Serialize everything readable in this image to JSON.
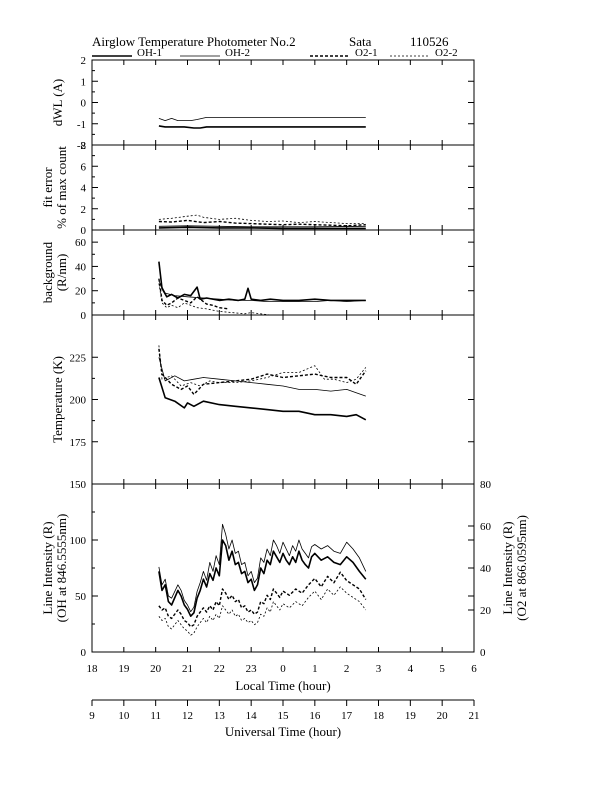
{
  "header": {
    "title": "Airglow Temperature Photometer No.2",
    "site": "Sata",
    "date": "110526"
  },
  "legend": [
    {
      "name": "OH-1",
      "style": "solid-thick"
    },
    {
      "name": "OH-2",
      "style": "solid-thin"
    },
    {
      "name": "O2-1",
      "style": "dash-thick"
    },
    {
      "name": "O2-2",
      "style": "dash-thin"
    }
  ],
  "chart_data": [
    {
      "type": "line",
      "ylabel": "dWL (A)",
      "ylim": [
        -2,
        2
      ],
      "yticks": [
        -2,
        -1,
        0,
        1,
        2
      ],
      "series": [
        {
          "name": "OH-1",
          "x": [
            20.1,
            20.3,
            20.6,
            20.9,
            21.2,
            21.4,
            21.6,
            23.0,
            25.0,
            26.6
          ],
          "y": [
            -1.1,
            -1.15,
            -1.15,
            -1.15,
            -1.2,
            -1.2,
            -1.15,
            -1.15,
            -1.15,
            -1.15
          ]
        },
        {
          "name": "OH-2",
          "x": [
            20.1,
            20.3,
            20.5,
            20.7,
            20.9,
            21.1,
            21.3,
            21.6,
            23.0,
            25.0,
            26.6
          ],
          "y": [
            -0.75,
            -0.85,
            -0.75,
            -0.85,
            -0.85,
            -0.85,
            -0.8,
            -0.7,
            -0.7,
            -0.7,
            -0.7
          ]
        }
      ]
    },
    {
      "type": "line",
      "ylabel": "fit error",
      "ylabel2": "% of max count",
      "ylim": [
        0,
        8
      ],
      "yticks": [
        0,
        2,
        4,
        6,
        8
      ],
      "series": [
        {
          "name": "OH-1",
          "x": [
            20.1,
            21.0,
            22.0,
            23.0,
            24.0,
            25.0,
            26.6
          ],
          "y": [
            0.2,
            0.25,
            0.2,
            0.2,
            0.15,
            0.15,
            0.15
          ]
        },
        {
          "name": "OH-2",
          "x": [
            20.1,
            21.0,
            22.0,
            23.0,
            24.0,
            25.0,
            26.6
          ],
          "y": [
            0.35,
            0.4,
            0.35,
            0.3,
            0.3,
            0.3,
            0.35
          ]
        },
        {
          "name": "O2-1",
          "x": [
            20.1,
            20.5,
            21.0,
            21.5,
            22.0,
            22.5,
            23.0,
            23.5,
            24.0,
            24.5,
            25.0,
            25.5,
            26.0,
            26.6
          ],
          "y": [
            0.8,
            0.75,
            0.9,
            0.7,
            0.8,
            0.65,
            0.6,
            0.55,
            0.5,
            0.55,
            0.5,
            0.45,
            0.4,
            0.5
          ]
        },
        {
          "name": "O2-2",
          "x": [
            20.1,
            20.5,
            21.0,
            21.3,
            21.5,
            22.0,
            22.5,
            23.0,
            23.5,
            24.0,
            24.5,
            25.0,
            25.5,
            26.0,
            26.6
          ],
          "y": [
            1.0,
            1.1,
            1.3,
            1.4,
            1.2,
            1.0,
            1.1,
            0.9,
            0.8,
            0.85,
            0.7,
            0.8,
            0.7,
            0.6,
            0.6
          ]
        }
      ]
    },
    {
      "type": "line",
      "ylabel": "background",
      "ylabel2": "(R/nm)",
      "ylim": [
        0,
        70
      ],
      "yticks": [
        0,
        20,
        40,
        60
      ],
      "series": [
        {
          "name": "OH-1",
          "x": [
            20.1,
            20.2,
            20.35,
            20.5,
            20.7,
            20.9,
            21.1,
            21.3,
            21.4,
            21.6,
            22.0,
            22.3,
            22.6,
            22.8,
            22.9,
            23.0,
            23.3,
            23.6,
            24.0,
            24.5,
            25.0,
            25.5,
            26.0,
            26.6
          ],
          "y": [
            44,
            22,
            15,
            17,
            14,
            17,
            16,
            23,
            13,
            14,
            12,
            13,
            12,
            13,
            22,
            13,
            12,
            13,
            12,
            12,
            13,
            12,
            12,
            12
          ]
        },
        {
          "name": "OH-2",
          "x": [
            20.1,
            20.3,
            20.6,
            21.0,
            21.5,
            22.0,
            22.5,
            23.0,
            23.5,
            24.0,
            24.5,
            25.0,
            25.5,
            26.0,
            26.6
          ],
          "y": [
            28,
            18,
            16,
            15,
            14,
            13,
            12,
            12,
            11,
            11,
            11,
            11,
            12,
            11,
            12
          ]
        },
        {
          "name": "O2-1",
          "x": [
            20.1,
            20.2,
            20.35,
            20.5,
            20.7,
            20.9,
            21.1,
            21.3,
            21.6,
            21.8,
            22.0,
            22.3
          ],
          "y": [
            30,
            12,
            8,
            10,
            14,
            12,
            10,
            15,
            9,
            8,
            6,
            5
          ]
        },
        {
          "name": "O2-2",
          "x": [
            20.1,
            20.2,
            20.35,
            20.5,
            20.7,
            20.9,
            21.1,
            21.3,
            21.6,
            22.0,
            22.4,
            22.8,
            23.0,
            23.3,
            23.6
          ],
          "y": [
            26,
            10,
            6,
            8,
            6,
            10,
            8,
            6,
            5,
            3,
            2,
            1,
            2,
            1,
            0
          ]
        }
      ]
    },
    {
      "type": "line",
      "ylabel": "Temperature (K)",
      "ylim": [
        150,
        250
      ],
      "yticks": [
        175,
        200,
        225
      ],
      "series": [
        {
          "name": "OH-1",
          "x": [
            20.1,
            20.3,
            20.6,
            20.9,
            21.0,
            21.2,
            21.5,
            22.0,
            22.5,
            23.0,
            23.5,
            24.0,
            24.5,
            25.0,
            25.5,
            26.0,
            26.3,
            26.6
          ],
          "y": [
            213,
            201,
            199,
            195,
            198,
            196,
            199,
            197,
            196,
            195,
            194,
            193,
            193,
            191,
            191,
            190,
            191,
            188
          ]
        },
        {
          "name": "OH-2",
          "x": [
            20.1,
            20.3,
            20.6,
            20.9,
            21.2,
            21.5,
            22.0,
            22.5,
            23.0,
            23.5,
            24.0,
            24.5,
            25.0,
            25.5,
            26.0,
            26.3,
            26.6
          ],
          "y": [
            225,
            211,
            214,
            211,
            212,
            213,
            212,
            211,
            210,
            209,
            208,
            206,
            206,
            205,
            206,
            204,
            202
          ]
        },
        {
          "name": "O2-1",
          "x": [
            20.1,
            20.2,
            20.5,
            20.8,
            21.0,
            21.2,
            21.5,
            22.0,
            22.5,
            23.0,
            23.5,
            24.0,
            24.5,
            25.0,
            25.5,
            26.0,
            26.3,
            26.6
          ],
          "y": [
            230,
            215,
            209,
            206,
            208,
            203,
            209,
            210,
            211,
            212,
            215,
            213,
            214,
            215,
            213,
            213,
            209,
            217
          ]
        },
        {
          "name": "O2-2",
          "x": [
            20.1,
            20.2,
            20.5,
            20.8,
            21.1,
            21.4,
            21.7,
            22.0,
            22.5,
            23.0,
            23.5,
            24.0,
            24.5,
            25.0,
            25.3,
            25.6,
            26.0,
            26.3,
            26.6
          ],
          "y": [
            232,
            212,
            214,
            208,
            210,
            208,
            211,
            210,
            210,
            211,
            213,
            216,
            216,
            220,
            212,
            212,
            210,
            212,
            219
          ]
        }
      ]
    },
    {
      "type": "line",
      "ylabel": "Line Intensity (R)",
      "ylabel2": "(OH at 846.5555nm)",
      "ylim": [
        0,
        150
      ],
      "yticks": [
        0,
        50,
        100,
        150
      ],
      "y2label": "Line Intensity (R)",
      "y2label2": "(O2 at 866.0595nm)",
      "y2lim": [
        0,
        80
      ],
      "y2ticks": [
        0,
        20,
        40,
        60,
        80
      ],
      "xlabel": "Local Time (hour)",
      "xlim": [
        18,
        30
      ],
      "xticks": [
        "18",
        "19",
        "20",
        "21",
        "22",
        "23",
        "0",
        "1",
        "2",
        "3",
        "4",
        "5",
        "6"
      ],
      "xlabel2": "Universal Time (hour)",
      "xticks2": [
        "9",
        "10",
        "11",
        "12",
        "13",
        "14",
        "15",
        "16",
        "17",
        "18",
        "19",
        "20",
        "21"
      ],
      "series": [
        {
          "name": "OH-1",
          "axis": "left",
          "x": [
            20.1,
            20.2,
            20.3,
            20.4,
            20.5,
            20.7,
            20.8,
            20.9,
            21.0,
            21.1,
            21.2,
            21.3,
            21.4,
            21.5,
            21.6,
            21.7,
            21.8,
            21.9,
            22.0,
            22.1,
            22.2,
            22.3,
            22.4,
            22.5,
            22.6,
            22.7,
            22.8,
            22.9,
            23.0,
            23.1,
            23.2,
            23.3,
            23.4,
            23.5,
            23.6,
            23.7,
            23.8,
            23.9,
            24.0,
            24.1,
            24.2,
            24.3,
            24.4,
            24.5,
            24.6,
            24.7,
            24.8,
            24.9,
            25.0,
            25.2,
            25.4,
            25.6,
            25.8,
            26.0,
            26.2,
            26.4,
            26.6
          ],
          "y": [
            72,
            55,
            60,
            45,
            42,
            55,
            50,
            42,
            38,
            32,
            35,
            48,
            55,
            65,
            58,
            70,
            64,
            75,
            68,
            100,
            95,
            82,
            90,
            78,
            80,
            70,
            72,
            62,
            65,
            55,
            60,
            75,
            70,
            82,
            78,
            90,
            85,
            80,
            88,
            82,
            78,
            85,
            80,
            90,
            82,
            78,
            75,
            85,
            88,
            82,
            85,
            80,
            78,
            85,
            80,
            72,
            65
          ]
        },
        {
          "name": "OH-2",
          "axis": "left",
          "x": [
            20.1,
            20.2,
            20.3,
            20.4,
            20.5,
            20.7,
            20.8,
            20.9,
            21.0,
            21.1,
            21.2,
            21.3,
            21.4,
            21.5,
            21.6,
            21.7,
            21.8,
            21.9,
            22.0,
            22.1,
            22.2,
            22.3,
            22.4,
            22.5,
            22.6,
            22.7,
            22.8,
            22.9,
            23.0,
            23.1,
            23.2,
            23.3,
            23.4,
            23.5,
            23.6,
            23.7,
            23.8,
            23.9,
            24.0,
            24.1,
            24.2,
            24.3,
            24.4,
            24.5,
            24.6,
            24.7,
            24.8,
            24.9,
            25.0,
            25.2,
            25.4,
            25.6,
            25.8,
            26.0,
            26.2,
            26.4,
            26.6
          ],
          "y": [
            76,
            60,
            65,
            50,
            48,
            60,
            55,
            46,
            42,
            36,
            40,
            54,
            62,
            72,
            64,
            80,
            72,
            86,
            78,
            114,
            105,
            92,
            100,
            88,
            90,
            78,
            80,
            68,
            72,
            62,
            66,
            84,
            80,
            92,
            86,
            100,
            95,
            88,
            98,
            92,
            86,
            95,
            90,
            100,
            92,
            88,
            84,
            94,
            96,
            92,
            95,
            90,
            88,
            98,
            92,
            84,
            72
          ]
        },
        {
          "name": "O2-1",
          "axis": "right",
          "x": [
            20.1,
            20.2,
            20.3,
            20.4,
            20.5,
            20.7,
            20.8,
            20.9,
            21.0,
            21.1,
            21.2,
            21.3,
            21.4,
            21.5,
            21.6,
            21.7,
            21.8,
            21.9,
            22.0,
            22.1,
            22.2,
            22.3,
            22.4,
            22.5,
            22.6,
            22.7,
            22.8,
            22.9,
            23.0,
            23.1,
            23.2,
            23.3,
            23.4,
            23.5,
            23.6,
            23.7,
            23.8,
            23.9,
            24.0,
            24.2,
            24.4,
            24.6,
            24.8,
            25.0,
            25.2,
            25.4,
            25.6,
            25.8,
            26.0,
            26.2,
            26.4,
            26.6
          ],
          "y": [
            22,
            20,
            21,
            17,
            16,
            20,
            18,
            15,
            14,
            12,
            13,
            17,
            19,
            21,
            19,
            22,
            20,
            24,
            22,
            30,
            28,
            25,
            27,
            24,
            25,
            21,
            22,
            19,
            20,
            18,
            19,
            24,
            23,
            27,
            25,
            30,
            28,
            26,
            29,
            27,
            30,
            28,
            32,
            35,
            31,
            36,
            33,
            38,
            34,
            32,
            30,
            25
          ]
        },
        {
          "name": "O2-2",
          "axis": "right",
          "x": [
            20.1,
            20.2,
            20.3,
            20.4,
            20.5,
            20.7,
            20.8,
            20.9,
            21.0,
            21.1,
            21.2,
            21.3,
            21.4,
            21.5,
            21.6,
            21.7,
            21.8,
            21.9,
            22.0,
            22.1,
            22.2,
            22.3,
            22.4,
            22.5,
            22.6,
            22.7,
            22.8,
            22.9,
            23.0,
            23.1,
            23.2,
            23.3,
            23.4,
            23.5,
            23.6,
            23.7,
            23.8,
            23.9,
            24.0,
            24.2,
            24.4,
            24.6,
            24.8,
            25.0,
            25.2,
            25.4,
            25.6,
            25.8,
            26.0,
            26.2,
            26.4,
            26.6
          ],
          "y": [
            17,
            15,
            16,
            12,
            11,
            15,
            13,
            11,
            10,
            8,
            9,
            12,
            14,
            16,
            14,
            17,
            15,
            18,
            16,
            22,
            20,
            18,
            20,
            17,
            18,
            15,
            16,
            14,
            15,
            13,
            14,
            18,
            17,
            21,
            19,
            24,
            22,
            20,
            23,
            21,
            24,
            22,
            26,
            29,
            25,
            30,
            27,
            31,
            28,
            26,
            24,
            20
          ]
        }
      ]
    }
  ]
}
